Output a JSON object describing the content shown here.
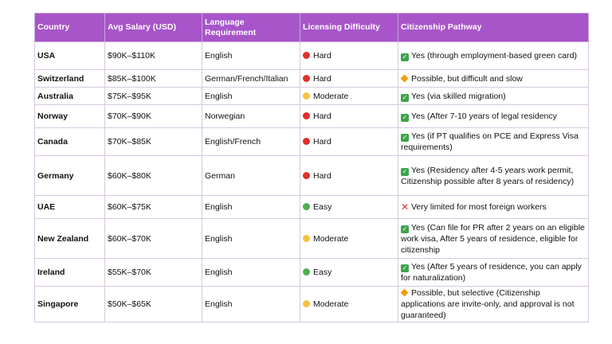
{
  "table": {
    "headers": [
      "Country",
      "Avg Salary (USD)",
      "Language Requirement",
      "Licensing Difficulty",
      "Citizenship Pathway"
    ],
    "rows": [
      {
        "country": "USA",
        "salary": "$90K–$110K",
        "language": "English",
        "difficulty": "Hard",
        "difficulty_color": "#e0302b",
        "pathway_icon": "check-mark-icon",
        "pathway": "Yes (through employment-based green card)"
      },
      {
        "country": "Switzerland",
        "salary": "$85K–$100K",
        "language": "German/French/Italian",
        "difficulty": "Hard",
        "difficulty_color": "#e0302b",
        "pathway_icon": "orange-diamond-icon",
        "pathway": "Possible, but difficult and slow"
      },
      {
        "country": "Australia",
        "salary": "$75K–$95K",
        "language": "English",
        "difficulty": "Moderate",
        "difficulty_color": "#f5c242",
        "pathway_icon": "check-mark-icon",
        "pathway": "Yes (via skilled migration)"
      },
      {
        "country": "Norway",
        "salary": "$70K–$90K",
        "language": "Norwegian",
        "difficulty": "Hard",
        "difficulty_color": "#e0302b",
        "pathway_icon": "check-mark-icon",
        "pathway": "Yes (After 7-10 years of legal residency"
      },
      {
        "country": "Canada",
        "salary": "$70K–$85K",
        "language": "English/French",
        "difficulty": "Hard",
        "difficulty_color": "#e0302b",
        "pathway_icon": "check-mark-icon",
        "pathway": "Yes (if PT qualifies on PCE and Express Visa requirements)"
      },
      {
        "country": "Germany",
        "salary": "$60K–$80K",
        "language": "German",
        "difficulty": "Hard",
        "difficulty_color": "#e0302b",
        "pathway_icon": "check-mark-icon",
        "pathway": "Yes (Residency after 4-5 years work permit, Citizenship possible after 8 years of residency)"
      },
      {
        "country": "UAE",
        "salary": "$60K–$75K",
        "language": "English",
        "difficulty": "Easy",
        "difficulty_color": "#4caf50",
        "pathway_icon": "cross-mark-icon",
        "pathway": "Very limited for most foreign workers"
      },
      {
        "country": "New Zealand",
        "salary": "$60K–$70K",
        "language": "English",
        "difficulty": "Moderate",
        "difficulty_color": "#f5c242",
        "pathway_icon": "check-mark-icon",
        "pathway": "Yes (Can file for PR after 2 years on an eligible work visa, After 5 years of residence, eligible for citizenship"
      },
      {
        "country": "Ireland",
        "salary": "$55K–$70K",
        "language": "English",
        "difficulty": "Easy",
        "difficulty_color": "#4caf50",
        "pathway_icon": "check-mark-icon",
        "pathway": "Yes (After 5 years of residence, you can apply for naturalization)"
      },
      {
        "country": "Singapore",
        "salary": "$50K–$65K",
        "language": "English",
        "difficulty": "Moderate",
        "difficulty_color": "#f5c242",
        "pathway_icon": "orange-diamond-icon",
        "pathway": "Possible, but selective (Citizenship applications are invite-only, and approval is not guaranteed)"
      }
    ]
  },
  "colors": {
    "header_bg": "#a755c9",
    "header_text": "#ffffff",
    "hard": "#e0302b",
    "moderate": "#f5c242",
    "easy": "#4caf50",
    "check": "#3fa34d",
    "diamond": "#f39c12",
    "cross": "#e0302b"
  }
}
